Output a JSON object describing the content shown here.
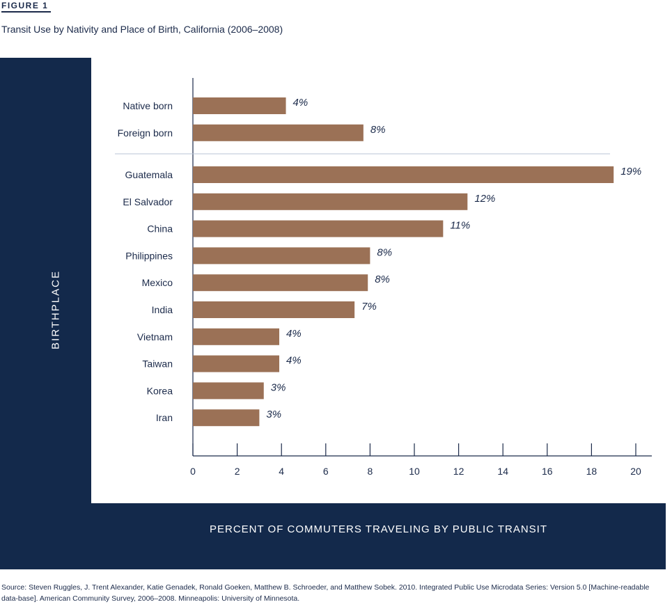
{
  "figure_label": "FIGURE 1",
  "title": "Transit Use by Nativity and Place of Birth, California (2006–2008)",
  "source": "Source: Steven Ruggles, J. Trent Alexander, Katie Genadek, Ronald Goeken, Matthew B. Schroeder, and Matthew Sobek. 2010. Integrated Public Use Microdata Series: Version 5.0 [Machine-readable data-base]. American Community Survey, 2006–2008. Minneapolis: University of Minnesota.",
  "colors": {
    "panel": "#13294b",
    "bar": "#9b7156",
    "text": "#1b2a4a"
  },
  "chart_data": {
    "type": "bar",
    "orientation": "horizontal",
    "xlabel": "PERCENT OF COMMUTERS TRAVELING BY PUBLIC TRANSIT",
    "ylabel": "BIRTHPLACE",
    "xlim": [
      0,
      20
    ],
    "xticks": [
      0,
      2,
      4,
      6,
      8,
      10,
      12,
      14,
      16,
      18,
      20
    ],
    "grid": false,
    "groups": [
      {
        "categories": [
          "Native born",
          "Foreign born"
        ],
        "values": [
          4.2,
          7.7
        ],
        "labels": [
          "4%",
          "8%"
        ]
      },
      {
        "categories": [
          "Guatemala",
          "El Salvador",
          "China",
          "Philippines",
          "Mexico",
          "India",
          "Vietnam",
          "Taiwan",
          "Korea",
          "Iran"
        ],
        "values": [
          19.0,
          12.4,
          11.3,
          8.0,
          7.9,
          7.3,
          3.9,
          3.9,
          3.2,
          3.0
        ],
        "labels": [
          "19%",
          "12%",
          "11%",
          "8%",
          "8%",
          "7%",
          "4%",
          "4%",
          "3%",
          "3%"
        ]
      }
    ]
  }
}
